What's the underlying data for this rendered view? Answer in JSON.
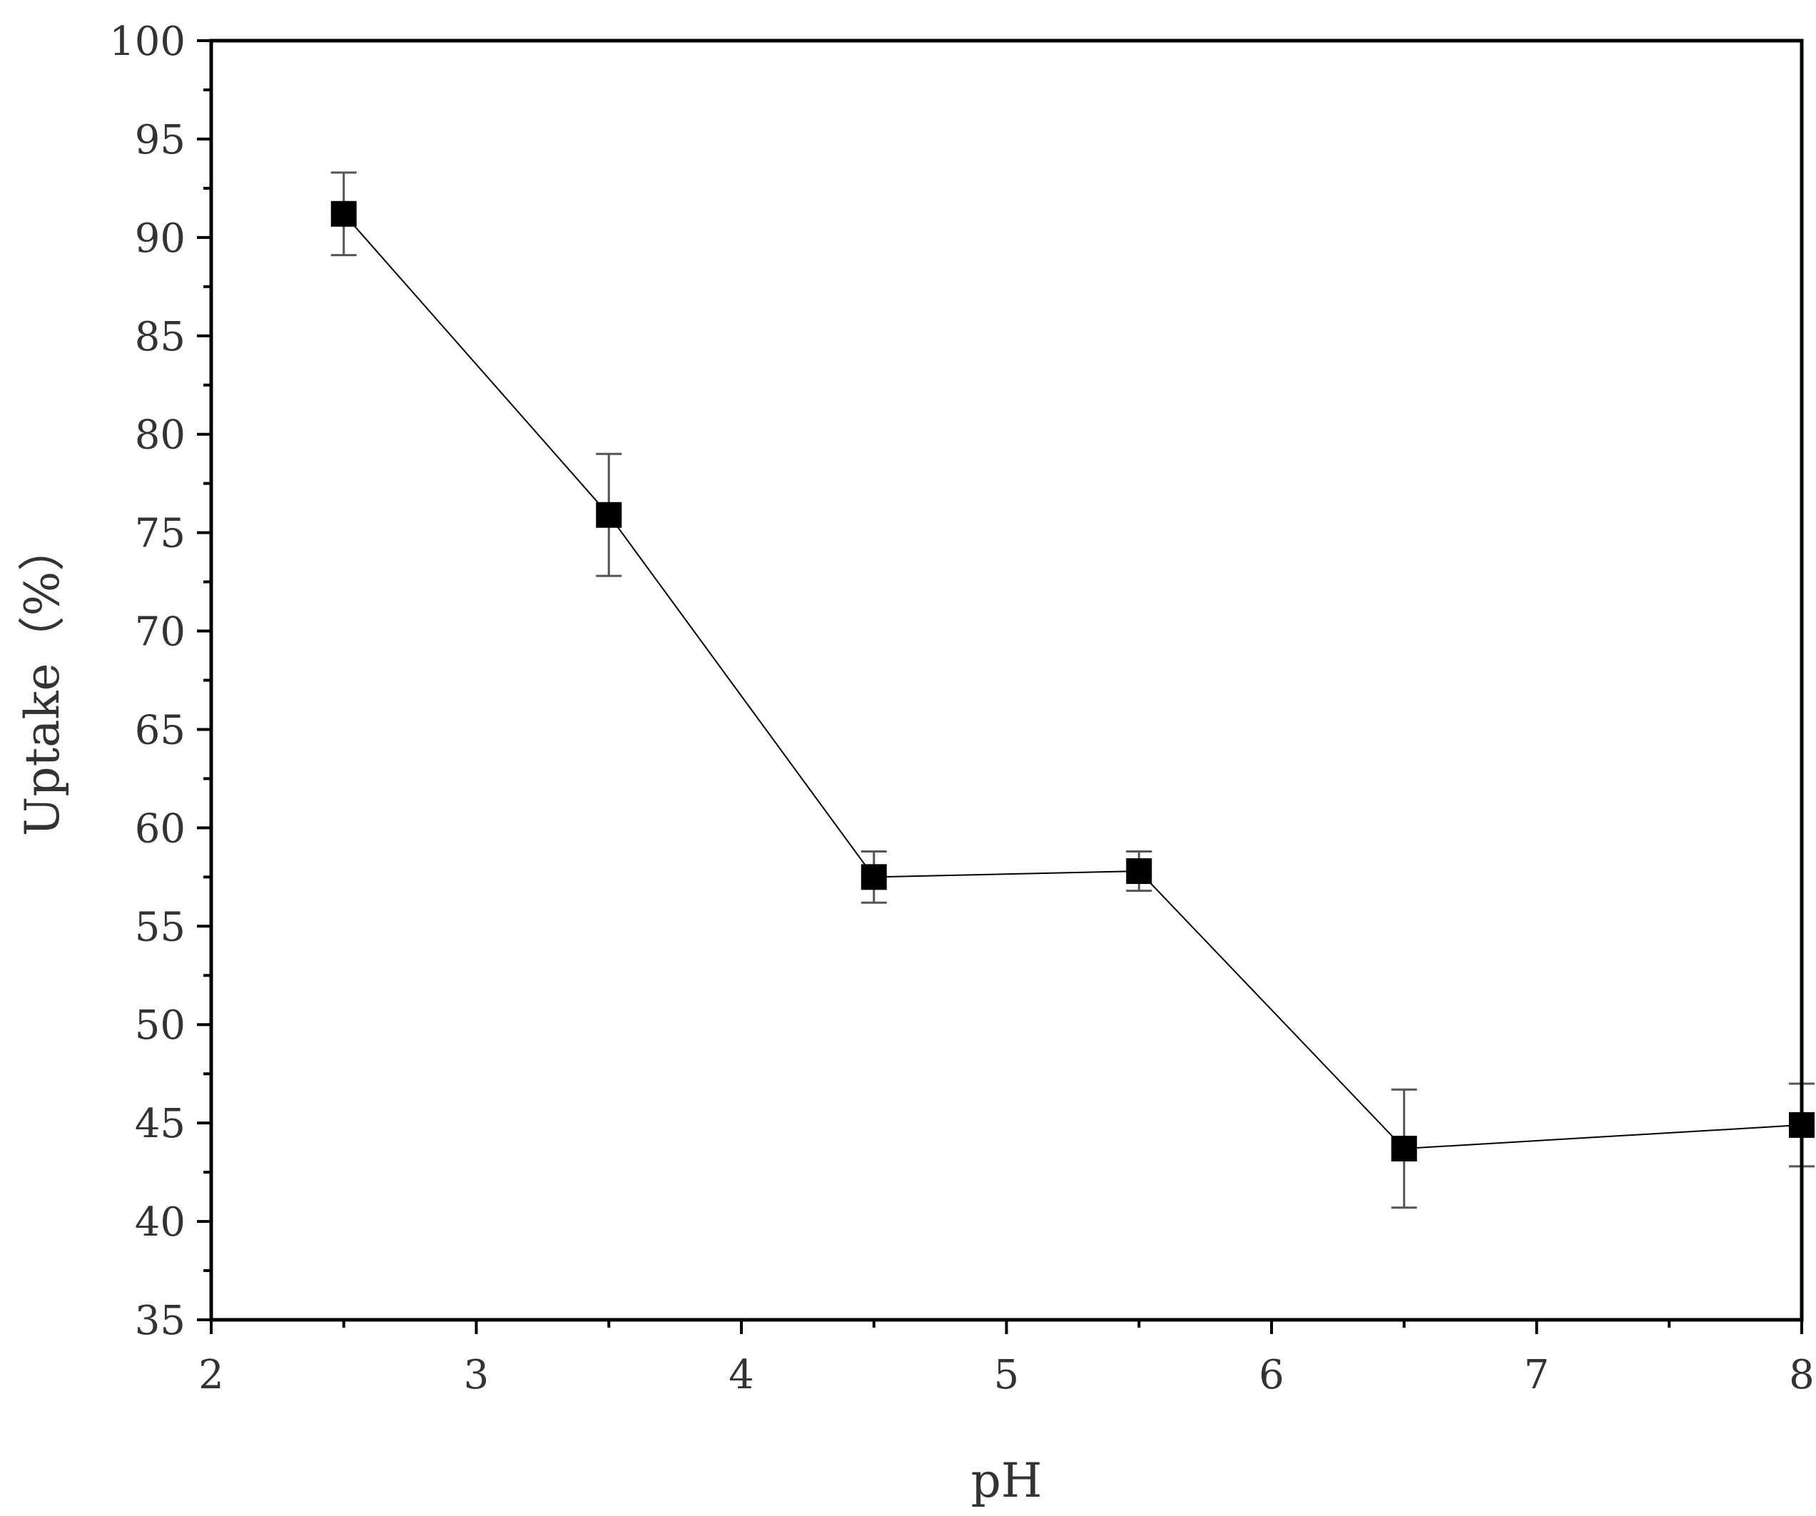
{
  "chart_data": {
    "type": "scatter",
    "xlabel": "pH",
    "ylabel": "Uptake（%）",
    "xlim": [
      2,
      8
    ],
    "ylim": [
      35,
      100
    ],
    "xticks": [
      2,
      3,
      4,
      5,
      6,
      7,
      8
    ],
    "yticks": [
      35,
      40,
      45,
      50,
      55,
      60,
      65,
      70,
      75,
      80,
      85,
      90,
      95,
      100
    ],
    "x_minor_step": 0.5,
    "y_minor_step": 2.5,
    "grid": false,
    "connected": true,
    "marker": "square",
    "series": [
      {
        "points": [
          {
            "x": 2.5,
            "y": 91.2,
            "err": 2.1
          },
          {
            "x": 3.5,
            "y": 75.9,
            "err": 3.1
          },
          {
            "x": 4.5,
            "y": 57.5,
            "err": 1.3
          },
          {
            "x": 5.5,
            "y": 57.8,
            "err": 1.0
          },
          {
            "x": 6.5,
            "y": 43.7,
            "err": 3.0
          },
          {
            "x": 8.0,
            "y": 44.9,
            "err": 2.1
          }
        ]
      }
    ]
  }
}
